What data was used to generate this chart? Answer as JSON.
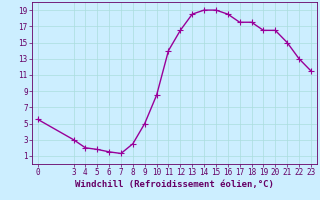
{
  "title": "",
  "xlabel": "Windchill (Refroidissement éolien,°C)",
  "x_data": [
    0,
    3,
    4,
    5,
    6,
    7,
    8,
    9,
    10,
    11,
    12,
    13,
    14,
    15,
    16,
    17,
    18,
    19,
    20,
    21,
    22,
    23
  ],
  "y_data": [
    5.5,
    3.0,
    2.0,
    1.8,
    1.5,
    1.3,
    2.5,
    5.0,
    8.5,
    14.0,
    16.5,
    18.5,
    19.0,
    19.0,
    18.5,
    17.5,
    17.5,
    16.5,
    16.5,
    15.0,
    13.0,
    11.5
  ],
  "line_color": "#990099",
  "marker": "+",
  "marker_size": 4,
  "bg_color": "#cceeff",
  "grid_color": "#aadddd",
  "axis_color": "#660066",
  "tick_color": "#660066",
  "label_color": "#660066",
  "xlim": [
    -0.5,
    23.5
  ],
  "ylim": [
    0,
    20
  ],
  "xticks": [
    0,
    3,
    4,
    5,
    6,
    7,
    8,
    9,
    10,
    11,
    12,
    13,
    14,
    15,
    16,
    17,
    18,
    19,
    20,
    21,
    22,
    23
  ],
  "yticks": [
    1,
    3,
    5,
    7,
    9,
    11,
    13,
    15,
    17,
    19
  ],
  "xlabel_fontsize": 6.5,
  "tick_fontsize": 5.5,
  "line_width": 1.0
}
